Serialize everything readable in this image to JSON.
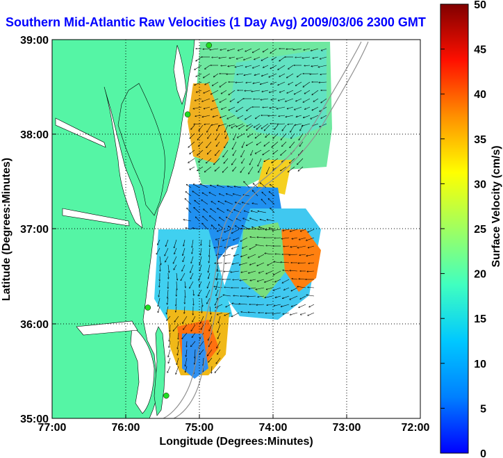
{
  "title": "Southern Mid-Atlantic Raw Velocities (1 Day Avg) 2009/03/06 2300 GMT",
  "x_axis": {
    "label": "Longitude (Degrees:Minutes)",
    "ticks": [
      "77:00",
      "76:00",
      "75:00",
      "74:00",
      "73:00",
      "72:00"
    ]
  },
  "y_axis": {
    "label": "Latitude (Degrees:Minutes)",
    "ticks": [
      "39:00",
      "38:00",
      "37:00",
      "36:00",
      "35:00"
    ]
  },
  "colorbar": {
    "label": "Surface Velocity (cm/s)",
    "ticks": [
      "50",
      "45",
      "40",
      "35",
      "30",
      "25",
      "20",
      "15",
      "10",
      "5",
      "0"
    ],
    "min": 0,
    "max": 50
  },
  "colors": {
    "land": "#55f5a5",
    "title": "#0000ff",
    "station": "#22dd22"
  },
  "map": {
    "lon_range": [
      -77,
      -72
    ],
    "lat_range": [
      35,
      39
    ],
    "stations": [
      {
        "lon": -74.87,
        "lat": 38.94
      },
      {
        "lon": -75.16,
        "lat": 38.21
      },
      {
        "lon": -75.7,
        "lat": 36.17
      },
      {
        "lon": -75.45,
        "lat": 35.24
      }
    ],
    "velocity_fields": [
      {
        "region": "delaware-shelf",
        "speed_cm_s": 17
      },
      {
        "region": "delaware-mouth",
        "speed_cm_s": 33
      },
      {
        "region": "chesapeake-offshore",
        "speed_cm_s": 8
      },
      {
        "region": "virginia-shelf",
        "speed_cm_s": 15
      },
      {
        "region": "outer-bulge",
        "speed_cm_s": 36
      },
      {
        "region": "hatteras-north",
        "speed_cm_s": 31
      },
      {
        "region": "hatteras-south",
        "speed_cm_s": 12
      }
    ]
  }
}
